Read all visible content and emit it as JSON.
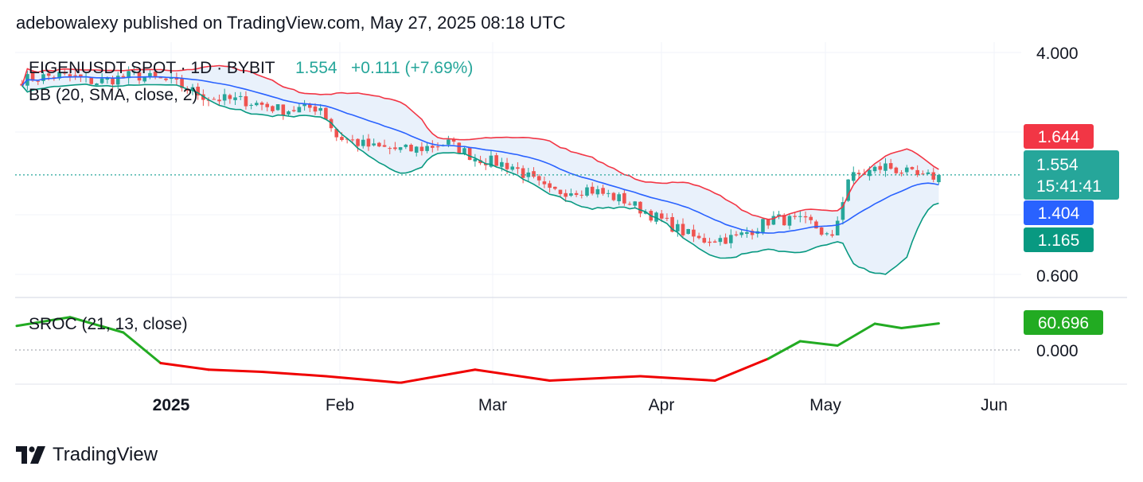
{
  "header": {
    "published_text": "adebowalexy published on TradingView.com, May 27, 2025 08:18 UTC"
  },
  "legend": {
    "symbol_line": "EIGENUSDT SPOT · 1D · BYBIT",
    "price": "1.554",
    "change": "+0.111 (+7.69%)",
    "bb_label": "BB (20, SMA, close, 2)",
    "sroc_label": "SROC (21, 13, close)"
  },
  "price_axis": {
    "ticks": [
      "4.000",
      "0.600"
    ],
    "log_scale": true
  },
  "sroc_axis": {
    "ticks": [
      "0.000"
    ]
  },
  "price_tags": {
    "upper": {
      "label": "1.644",
      "color": "#f23645"
    },
    "last": {
      "label": "1.554",
      "countdown": "15:41:41",
      "color": "#26a69a"
    },
    "basis": {
      "label": "1.404",
      "color": "#2962ff"
    },
    "lower": {
      "label": "1.165",
      "color": "#089981"
    },
    "sroc": {
      "label": "60.696",
      "color": "#22ab22"
    }
  },
  "time_axis": {
    "labels": [
      "2025",
      "Feb",
      "Mar",
      "Apr",
      "May",
      "Jun"
    ]
  },
  "colors": {
    "up": "#26a69a",
    "down": "#ef5350",
    "bb_upper": "#f23645",
    "bb_basis": "#2962ff",
    "bb_lower": "#089981",
    "bb_fill": "#e9f1fb",
    "sroc_pos": "#22ab22",
    "sroc_neg": "#f00000"
  },
  "footer": {
    "brand": "TradingView",
    "logo_icon": "tradingview-logo-icon"
  },
  "chart_data": {
    "type": "candlestick",
    "title": "EIGENUSDT SPOT · 1D · BYBIT",
    "x_labels": [
      "2025",
      "Feb",
      "Mar",
      "Apr",
      "May",
      "Jun"
    ],
    "y_scale": "log",
    "y_range": [
      0.45,
      6.0
    ],
    "last_price": 1.554,
    "change": 0.111,
    "change_pct": 7.69,
    "bollinger": {
      "period": 20,
      "mult": 2,
      "upper_last": 1.644,
      "basis_last": 1.404,
      "lower_last": 1.165
    },
    "sroc": {
      "params": [
        21,
        13
      ],
      "last": 60.696
    },
    "close_path": [
      {
        "date": "2024-12-06",
        "close": 4.1
      },
      {
        "date": "2024-12-13",
        "close": 4.3
      },
      {
        "date": "2024-12-20",
        "close": 4.0
      },
      {
        "date": "2024-12-27",
        "close": 4.3
      },
      {
        "date": "2025-01-03",
        "close": 4.0
      },
      {
        "date": "2025-01-10",
        "close": 3.4
      },
      {
        "date": "2025-01-17",
        "close": 3.3
      },
      {
        "date": "2025-01-24",
        "close": 3.0
      },
      {
        "date": "2025-01-31",
        "close": 3.1
      },
      {
        "date": "2025-02-03",
        "close": 2.3
      },
      {
        "date": "2025-02-10",
        "close": 2.05
      },
      {
        "date": "2025-02-17",
        "close": 2.0
      },
      {
        "date": "2025-02-24",
        "close": 2.15
      },
      {
        "date": "2025-03-01",
        "close": 1.85
      },
      {
        "date": "2025-03-08",
        "close": 1.7
      },
      {
        "date": "2025-03-15",
        "close": 1.3
      },
      {
        "date": "2025-03-22",
        "close": 1.35
      },
      {
        "date": "2025-03-29",
        "close": 1.2
      },
      {
        "date": "2025-04-05",
        "close": 0.98
      },
      {
        "date": "2025-04-12",
        "close": 0.8
      },
      {
        "date": "2025-04-19",
        "close": 0.82
      },
      {
        "date": "2025-04-26",
        "close": 1.0
      },
      {
        "date": "2025-05-03",
        "close": 0.95
      },
      {
        "date": "2025-05-07",
        "close": 0.8
      },
      {
        "date": "2025-05-10",
        "close": 1.5
      },
      {
        "date": "2025-05-17",
        "close": 1.7
      },
      {
        "date": "2025-05-24",
        "close": 1.5
      },
      {
        "date": "2025-05-27",
        "close": 1.554
      }
    ]
  }
}
